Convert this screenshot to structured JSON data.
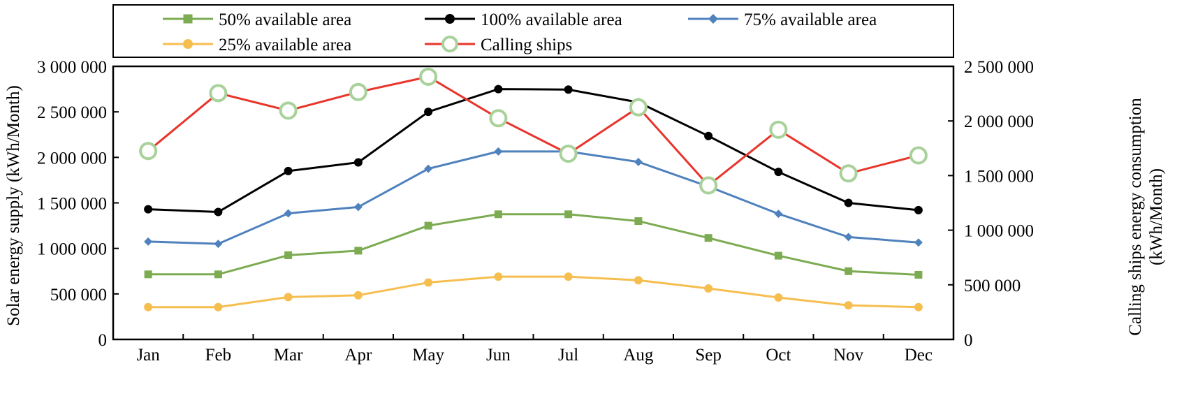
{
  "chart_data": {
    "type": "line",
    "title": "",
    "categories": [
      "Jan",
      "Feb",
      "Mar",
      "Apr",
      "May",
      "Jun",
      "Jul",
      "Aug",
      "Sep",
      "Oct",
      "Nov",
      "Dec"
    ],
    "xlabel": "",
    "left_axis": {
      "label": "Solar energy supply (kWh/Month)",
      "ylim": [
        0,
        3000000
      ],
      "ticks": [
        0,
        500000,
        1000000,
        1500000,
        2000000,
        2500000,
        3000000
      ],
      "tick_labels": [
        "0",
        "500 000",
        "1 000 000",
        "1 500 000",
        "2 000 000",
        "2 500 000",
        "3 000 000"
      ]
    },
    "right_axis": {
      "label_line1": "Calling ships energy consumption",
      "label_line2": "(kWh/Month)",
      "ylim": [
        0,
        2500000
      ],
      "ticks": [
        0,
        500000,
        1000000,
        1500000,
        2000000,
        2500000
      ],
      "tick_labels": [
        "0",
        "500 000",
        "1 000 000",
        "1 500 000",
        "2 000 000",
        "2 500 000"
      ]
    },
    "series": [
      {
        "name": "50% available area",
        "axis": "left",
        "color": "#7cab52",
        "marker": "square",
        "values": [
          715000,
          715000,
          925000,
          975000,
          1250000,
          1375000,
          1375000,
          1300000,
          1115000,
          920000,
          750000,
          710000
        ]
      },
      {
        "name": "100% available area",
        "axis": "left",
        "color": "#000000",
        "marker": "circle",
        "values": [
          1430000,
          1400000,
          1850000,
          1945000,
          2500000,
          2750000,
          2745000,
          2605000,
          2235000,
          1840000,
          1500000,
          1420000
        ]
      },
      {
        "name": "75% available area",
        "axis": "left",
        "color": "#4f81bd",
        "marker": "diamond",
        "values": [
          1075000,
          1050000,
          1385000,
          1455000,
          1875000,
          2065000,
          2065000,
          1950000,
          1680000,
          1380000,
          1125000,
          1065000
        ]
      },
      {
        "name": "25% available area",
        "axis": "left",
        "color": "#f6be4f",
        "marker": "circle",
        "values": [
          355000,
          355000,
          465000,
          485000,
          625000,
          690000,
          690000,
          650000,
          560000,
          460000,
          375000,
          355000
        ]
      },
      {
        "name": "Calling ships",
        "axis": "right",
        "color": "#e8352b",
        "marker": "open-circle",
        "marker_color": "#a9d19a",
        "values": [
          1725000,
          2255000,
          2095000,
          2265000,
          2405000,
          2025000,
          1700000,
          2125000,
          1410000,
          1920000,
          1520000,
          1685000
        ]
      }
    ],
    "legend_order": [
      0,
      1,
      2,
      3,
      4
    ],
    "legend_position": "top",
    "grid": false
  }
}
